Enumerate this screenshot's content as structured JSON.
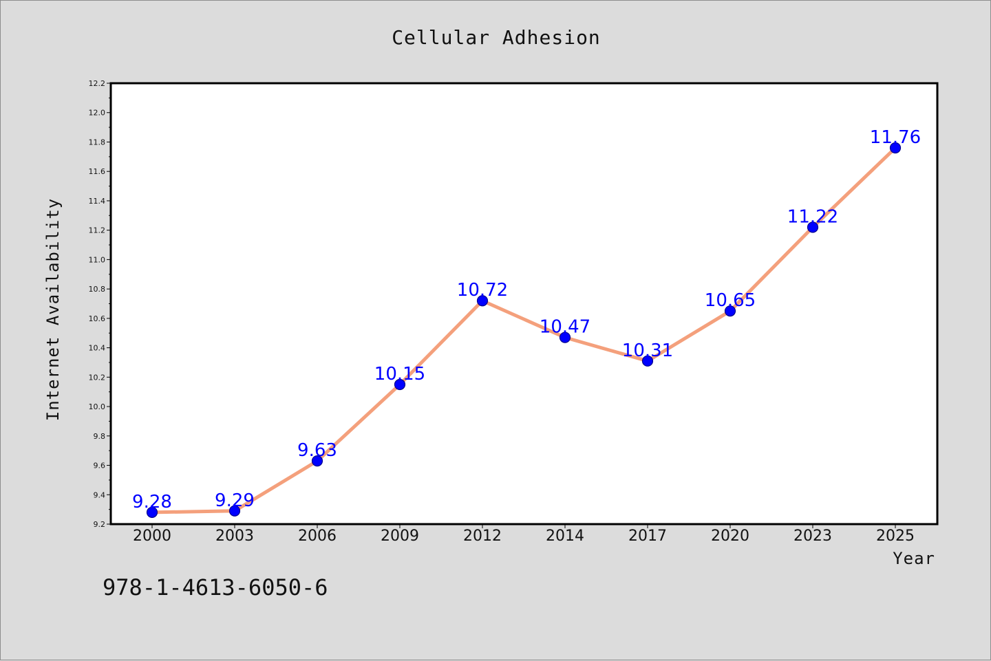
{
  "chart_data": {
    "type": "line",
    "title": "Cellular Adhesion",
    "xlabel": "Year",
    "ylabel": "Internet Availability",
    "categories": [
      "2000",
      "2003",
      "2006",
      "2009",
      "2012",
      "2014",
      "2017",
      "2020",
      "2023",
      "2025"
    ],
    "series": [
      {
        "values": [
          9.28,
          9.29,
          9.63,
          10.15,
          10.72,
          10.47,
          10.31,
          10.65,
          11.22,
          11.76
        ],
        "data_labels": [
          "9.28",
          "9.29",
          "9.63",
          "10.15",
          "10.72",
          "10.47",
          "10.31",
          "10.65",
          "11.22",
          "11.76"
        ]
      }
    ],
    "ylim": [
      9.2,
      12.2
    ],
    "yticks": [
      "9.2",
      "9.4",
      "9.6",
      "9.8",
      "10.0",
      "10.2",
      "10.4",
      "10.6",
      "10.8",
      "11.0",
      "11.2",
      "11.4",
      "11.6",
      "11.8",
      "12.0",
      "12.2"
    ],
    "grid": false,
    "legend": "none",
    "colors": {
      "line": "#f4a07c",
      "marker_fill": "#0000ff",
      "marker_edge": "#00008b",
      "label": "#0000ff",
      "background": "#dcdcdc",
      "plot_area": "#ffffff"
    }
  },
  "footnote": "978-1-4613-6050-6"
}
